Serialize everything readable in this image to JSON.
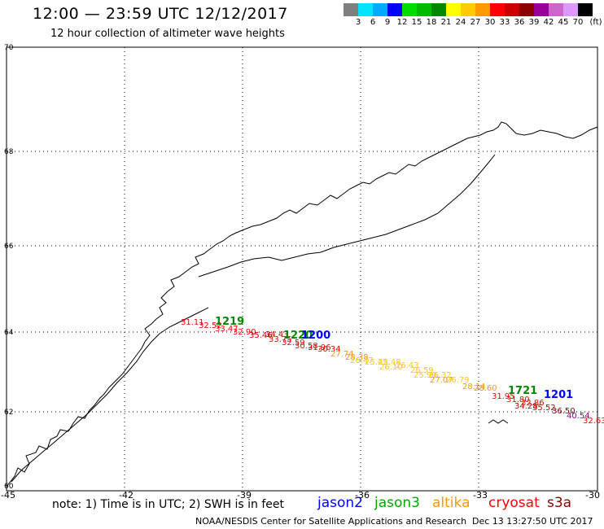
{
  "header": {
    "title": "12:00 — 23:59 UTC 12/12/2017",
    "subtitle": "12 hour collection of altimeter wave heights"
  },
  "legend": {
    "colors": [
      "#7f7f7f",
      "#00e5ff",
      "#00aaff",
      "#0000ff",
      "#00dd00",
      "#00bb00",
      "#008800",
      "#ffff00",
      "#ffcc00",
      "#ff9900",
      "#ff0000",
      "#cc0000",
      "#8b0000",
      "#990099",
      "#cc66cc",
      "#dd99ff",
      "#000000"
    ],
    "labels": [
      "3",
      "6",
      "9",
      "12",
      "15",
      "18",
      "21",
      "24",
      "27",
      "30",
      "33",
      "36",
      "39",
      "42",
      "45",
      "70",
      "(ft)"
    ]
  },
  "axes": {
    "lat_labels": [
      "70",
      "68",
      "66",
      "64",
      "62",
      "60"
    ],
    "lon_labels": [
      "-45",
      "-42",
      "-39",
      "-36",
      "-33",
      "-30"
    ]
  },
  "observations": [
    {
      "t": "31.11",
      "c": "#ff0000"
    },
    {
      "t": "32.52",
      "c": "#ff0000"
    },
    {
      "t": "33.47",
      "c": "#ff0000"
    },
    {
      "t": "1219",
      "c": "#008800",
      "time": true
    },
    {
      "t": "32.90",
      "c": "#ff0000"
    },
    {
      "t": "35.46",
      "c": "#cc0000"
    },
    {
      "t": "34.43",
      "c": "#cc0000"
    },
    {
      "t": "33.75",
      "c": "#ff0000"
    },
    {
      "t": "1220",
      "c": "#008800",
      "time": true
    },
    {
      "t": "1200",
      "c": "#0000ff",
      "time": true
    },
    {
      "t": "32.59",
      "c": "#ff0000"
    },
    {
      "t": "30.58",
      "c": "#ff0000"
    },
    {
      "t": "31.96",
      "c": "#ff0000"
    },
    {
      "t": "30.34",
      "c": "#ff0000"
    },
    {
      "t": "27.74",
      "c": "#ff9900"
    },
    {
      "t": "28.38",
      "c": "#ff9900"
    },
    {
      "t": "26.47",
      "c": "#ffcc00"
    },
    {
      "t": "25.42",
      "c": "#ffcc00"
    },
    {
      "t": "25.48",
      "c": "#ffcc00"
    },
    {
      "t": "26.10",
      "c": "#ffcc00"
    },
    {
      "t": "26.43",
      "c": "#ffcc00"
    },
    {
      "t": "26.59",
      "c": "#ffcc00"
    },
    {
      "t": "25.90",
      "c": "#ffcc00"
    },
    {
      "t": "26.32",
      "c": "#ffcc00"
    },
    {
      "t": "27.07",
      "c": "#ff9900"
    },
    {
      "t": "26.79",
      "c": "#ffcc00"
    },
    {
      "t": "28.14",
      "c": "#ff9900"
    },
    {
      "t": "28.60",
      "c": "#ff9900"
    },
    {
      "t": "1721",
      "c": "#008800",
      "time": true
    },
    {
      "t": "31.95",
      "c": "#ff0000"
    },
    {
      "t": "31.80",
      "c": "#ff0000"
    },
    {
      "t": "1201",
      "c": "#0000ff",
      "time": true
    },
    {
      "t": "32.86",
      "c": "#ff0000"
    },
    {
      "t": "34.28",
      "c": "#cc0000"
    },
    {
      "t": "35.52",
      "c": "#cc0000"
    },
    {
      "t": "36.50",
      "c": "#8b0000"
    },
    {
      "t": "40.54",
      "c": "#990099"
    },
    {
      "t": "32.63",
      "c": "#ff0000"
    }
  ],
  "note": "note: 1) Time is in UTC; 2) SWH is in feet",
  "satellites": [
    {
      "name": "jason2",
      "color": "#0000ff"
    },
    {
      "name": "jason3",
      "color": "#00aa00"
    },
    {
      "name": "altika",
      "color": "#ff9900"
    },
    {
      "name": "cryosat",
      "color": "#ff0000"
    },
    {
      "name": "s3a",
      "color": "#8b0000"
    }
  ],
  "footer": {
    "credit": "NOAA/NESDIS Center for Satellite Applications and Research",
    "timestamp": "Dec 13 13:27:50 UTC 2017"
  }
}
